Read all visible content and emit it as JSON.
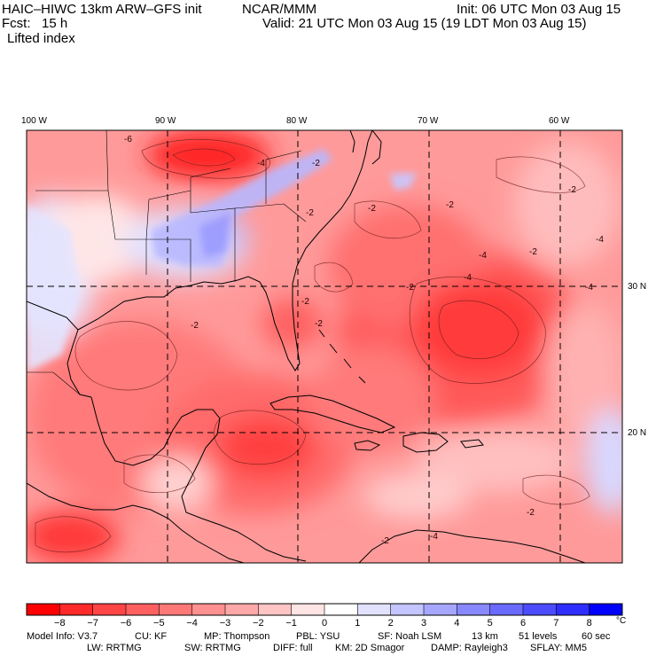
{
  "header": {
    "model": "HAIC–HIWC 13km ARW–GFS init",
    "org": "NCAR/MMM",
    "init": "Init: 06 UTC Mon 03 Aug 15",
    "fcst": "Fcst:   15 h",
    "valid": "Valid: 21 UTC Mon 03 Aug 15 (19 LDT Mon 03 Aug 15)",
    "field": "Lifted index"
  },
  "map": {
    "lon_labels": [
      "100 W",
      "90 W",
      "80 W",
      "70 W",
      "60 W"
    ],
    "lat_labels": [
      "30 N",
      "20 N"
    ],
    "contour_labels": [
      "-6",
      "-4",
      "-2",
      "-2",
      "-2",
      "-2",
      "-4",
      "-4",
      "-2",
      "-2",
      "-4",
      "-4",
      "-2",
      "-2",
      "-2",
      "-2",
      "-2",
      "-4",
      "-2"
    ]
  },
  "colorbar": {
    "ticks": [
      "−8",
      "−7",
      "−6",
      "−5",
      "−4",
      "−3",
      "−2",
      "−1",
      "0",
      "1",
      "2",
      "3",
      "4",
      "5",
      "6",
      "7",
      "8"
    ],
    "unit": "°C",
    "colors": [
      "#ff0000",
      "#ff2a2a",
      "#ff4545",
      "#ff5f5f",
      "#ff7878",
      "#ff9090",
      "#ffa8a8",
      "#ffc4c4",
      "#ffe4e4",
      "#ffffff",
      "#e2e2ff",
      "#c4c4ff",
      "#a6a6ff",
      "#8888ff",
      "#6a6aff",
      "#4c4cff",
      "#2e2eff",
      "#0000ff"
    ]
  },
  "footer": {
    "line1": [
      "Model Info: V3.7",
      "CU: KF",
      "MP: Thompson",
      "PBL: YSU",
      "SF: Noah LSM",
      "13 km",
      "51 levels",
      "60 sec"
    ],
    "line2": [
      "LW: RRTMG",
      "SW: RRTMG",
      "DIFF: full",
      "KM: 2D Smagor",
      "DAMP: Rayleigh3",
      "SFLAY: MM5"
    ]
  }
}
